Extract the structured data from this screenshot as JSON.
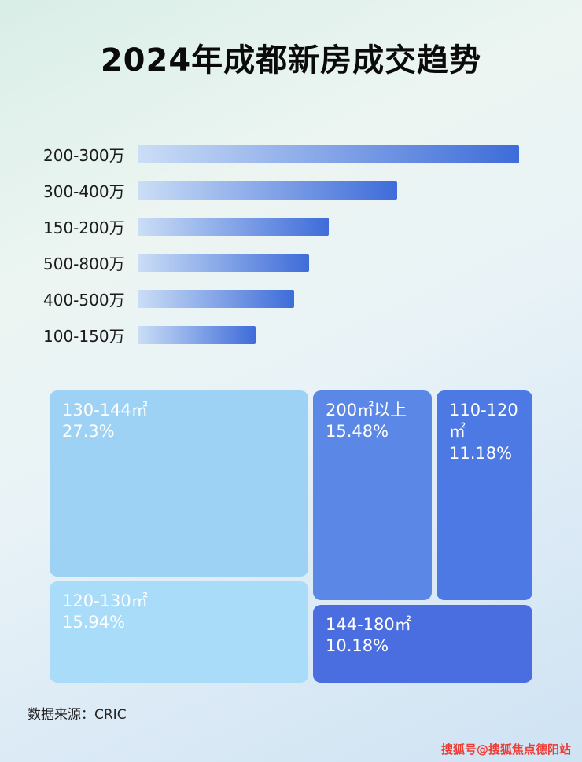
{
  "title": "2024年成都新房成交趋势",
  "footer": {
    "source_label": "数据来源：CRIC"
  },
  "watermark": {
    "text": "搜狐号@搜狐焦点德阳站",
    "color": "#ee3b34"
  },
  "chart_data": [
    {
      "type": "bar",
      "orientation": "horizontal",
      "title": "2024年成都新房成交趋势",
      "categories": [
        "200-300万",
        "300-400万",
        "150-200万",
        "500-800万",
        "400-500万",
        "100-150万"
      ],
      "values": [
        100,
        68,
        50,
        45,
        41,
        31
      ],
      "value_note": "relative bar length, longest bar = 100 (no numeric axis shown)",
      "xlabel": "",
      "ylabel": "",
      "grid": false,
      "legend": false,
      "bar_gradient": [
        "#cbdef6",
        "#3e6cd9"
      ]
    },
    {
      "type": "treemap",
      "items": [
        {
          "label": "130-144㎡",
          "value": 27.3,
          "display": "27.3%",
          "color": "#9ed2f5"
        },
        {
          "label": "120-130㎡",
          "value": 15.94,
          "display": "15.94%",
          "color": "#a9dcf8"
        },
        {
          "label": "200㎡以上",
          "value": 15.48,
          "display": "15.48%",
          "color": "#5b87e7"
        },
        {
          "label": "110-120㎡",
          "value": 11.18,
          "display": "11.18%",
          "color": "#4c79e4"
        },
        {
          "label": "144-180㎡",
          "value": 10.18,
          "display": "10.18%",
          "color": "#4a6ee0"
        }
      ]
    }
  ]
}
